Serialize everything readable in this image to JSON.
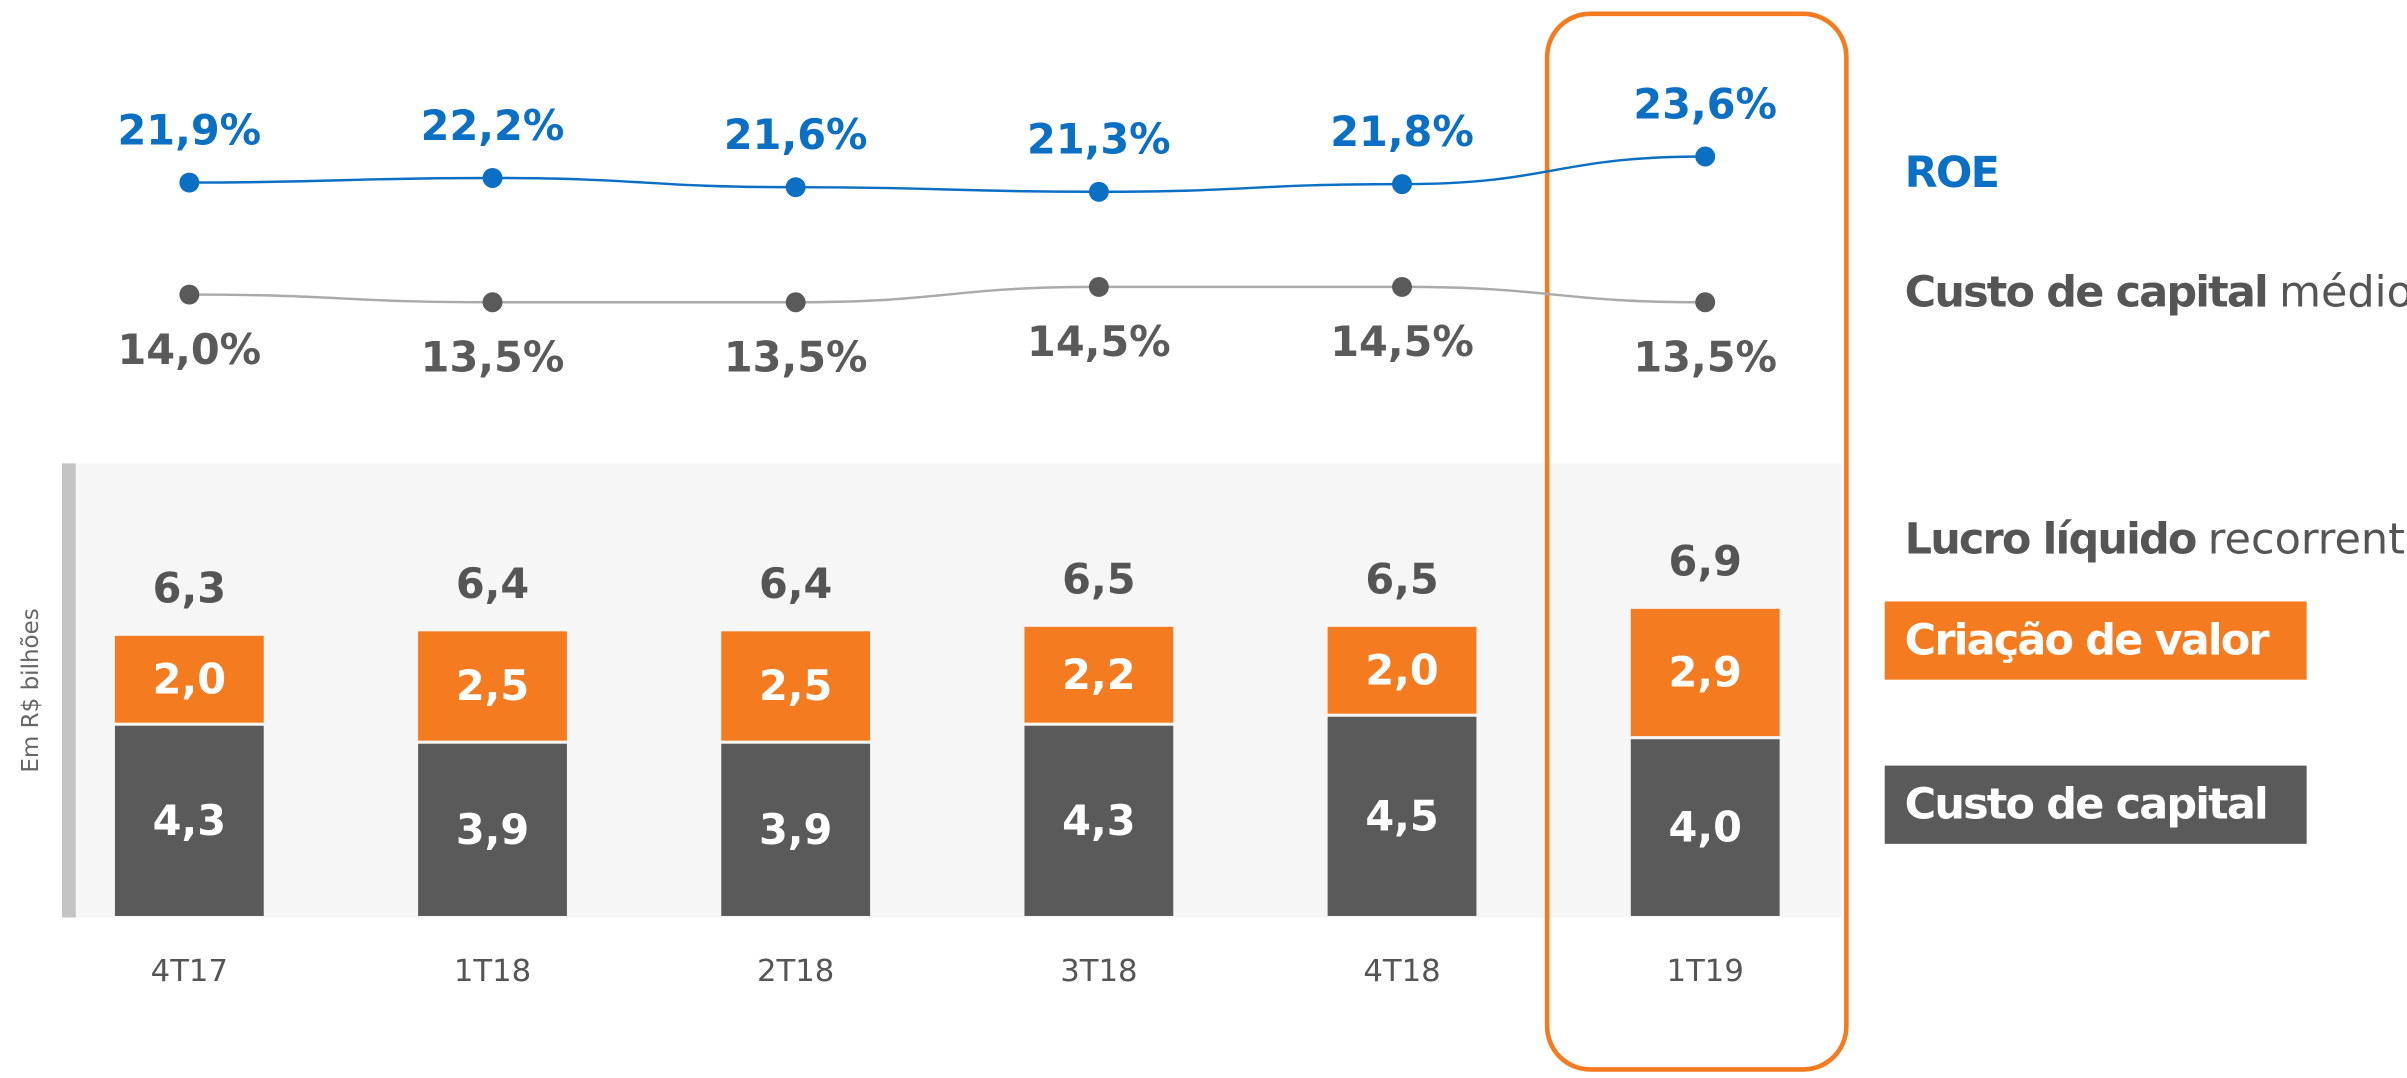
{
  "chart_data": {
    "type": "bar",
    "y_axis_label": "Em R$ bilhões",
    "categories": [
      "4T17",
      "1T18",
      "2T18",
      "3T18",
      "4T18",
      "1T19"
    ],
    "highlight": "1T19",
    "series": [
      {
        "name": "Custo de capital",
        "color": "#5a5a5a",
        "values": [
          4.3,
          3.9,
          3.9,
          4.3,
          4.5,
          4.0
        ],
        "value_labels": [
          "4,3",
          "3,9",
          "3,9",
          "4,3",
          "4,5",
          "4,0"
        ]
      },
      {
        "name": "Criação de valor",
        "color": "#f47b20",
        "values": [
          2.0,
          2.5,
          2.5,
          2.2,
          2.0,
          2.9
        ],
        "value_labels": [
          "2,0",
          "2,5",
          "2,5",
          "2,2",
          "2,0",
          "2,9"
        ]
      }
    ],
    "totals": {
      "name": [
        "Lucro líquido",
        "recorrente"
      ],
      "values": [
        6.3,
        6.4,
        6.4,
        6.5,
        6.5,
        6.9
      ],
      "value_labels": [
        "6,3",
        "6,4",
        "6,4",
        "6,5",
        "6,5",
        "6,9"
      ]
    },
    "lines": [
      {
        "type": "line",
        "name": [
          "ROE"
        ],
        "color": "#0b6fc4",
        "values": [
          21.9,
          22.2,
          21.6,
          21.3,
          21.8,
          23.6
        ],
        "value_labels": [
          "21,9%",
          "22,2%",
          "21,6%",
          "21,3%",
          "21,8%",
          "23,6%"
        ]
      },
      {
        "type": "line",
        "name": [
          "Custo de capital",
          "médio"
        ],
        "color": "#5a5a5a",
        "values": [
          14.0,
          13.5,
          13.5,
          14.5,
          14.5,
          13.5
        ],
        "value_labels": [
          "14,0%",
          "13,5%",
          "13,5%",
          "14,5%",
          "14,5%",
          "13,5%"
        ]
      }
    ]
  }
}
